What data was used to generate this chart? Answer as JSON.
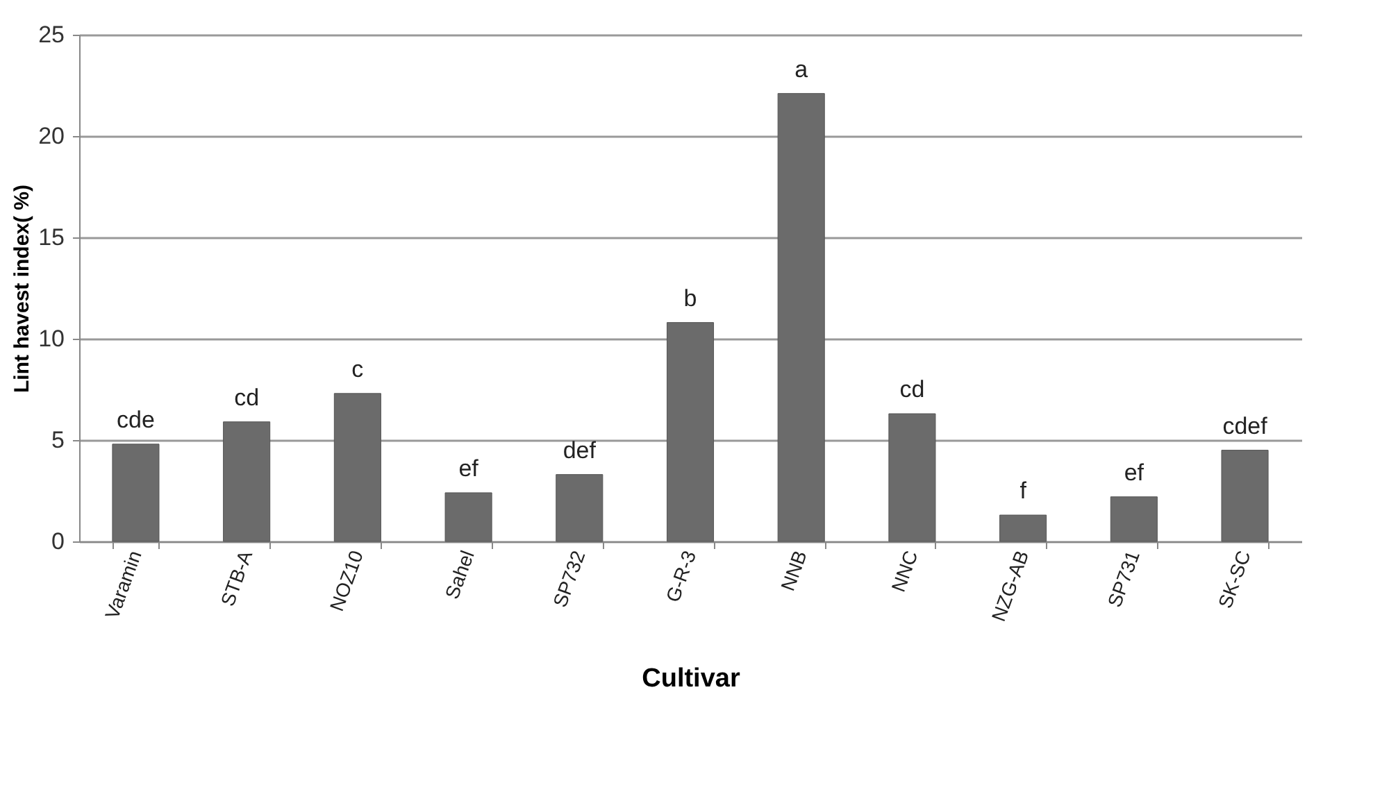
{
  "chart_data": {
    "type": "bar",
    "xlabel": "Cultivar",
    "ylabel": "Lint havest index( %)",
    "categories": [
      "Varamin",
      "STB-A",
      "NOZ10",
      "Sahel",
      "SP732",
      "G-R-3",
      "NNB",
      "NNC",
      "NZG-AB",
      "SP731",
      "SK-SC"
    ],
    "values": [
      4.8,
      5.9,
      7.3,
      2.4,
      3.3,
      10.8,
      22.1,
      6.3,
      1.3,
      2.2,
      4.5
    ],
    "color": "#6b6b6b",
    "ylim": [
      0,
      25
    ],
    "yticks": [
      0,
      5,
      10,
      15,
      20,
      25
    ],
    "grid": "y",
    "annotations": [
      {
        "text": "cde",
        "x": "Varamin",
        "y": 4.8
      },
      {
        "text": "cd",
        "x": "STB-A",
        "y": 5.9
      },
      {
        "text": "c",
        "x": "NOZ10",
        "y": 7.3
      },
      {
        "text": "ef",
        "x": "Sahel",
        "y": 2.4
      },
      {
        "text": "def",
        "x": "SP732",
        "y": 3.3
      },
      {
        "text": "b",
        "x": "G-R-3",
        "y": 10.8
      },
      {
        "text": "a",
        "x": "NNB",
        "y": 22.1
      },
      {
        "text": "cd",
        "x": "NNC",
        "y": 6.3
      },
      {
        "text": "f",
        "x": "NZG-AB",
        "y": 1.3
      },
      {
        "text": "ef",
        "x": "SP731",
        "y": 2.2
      },
      {
        "text": "cdef",
        "x": "SK-SC",
        "y": 4.5
      }
    ]
  }
}
